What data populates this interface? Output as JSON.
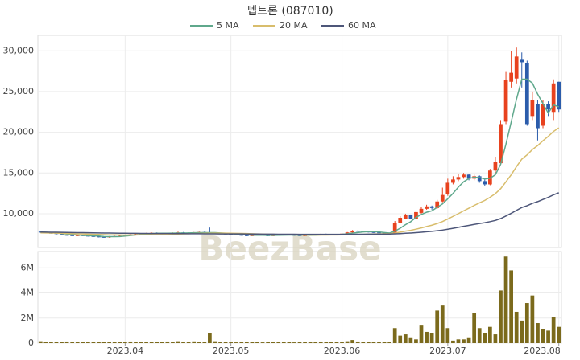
{
  "chart_data": [
    {
      "type": "candlestick",
      "title": "펩트론 (087010)",
      "watermark": "BeezBase",
      "up_color": "#e8421e",
      "down_color": "#2b5cab",
      "grid": true,
      "ylim": [
        5850,
        31900
      ],
      "yticks": [
        {
          "value": 10000,
          "label": "10,000"
        },
        {
          "value": 15000,
          "label": "15,000"
        },
        {
          "value": 20000,
          "label": "20,000"
        },
        {
          "value": 25000,
          "label": "25,000"
        },
        {
          "value": 30000,
          "label": "30,000"
        }
      ],
      "open": [
        7800,
        7700,
        7650,
        7600,
        7500,
        7400,
        7350,
        7300,
        7350,
        7300,
        7250,
        7200,
        7150,
        7100,
        7200,
        7250,
        7300,
        7400,
        7450,
        7500,
        7550,
        7600,
        7650,
        7600,
        7550,
        7600,
        7650,
        7700,
        7650,
        7600,
        7700,
        7750,
        7700,
        7650,
        7600,
        7550,
        7500,
        7450,
        7400,
        7350,
        7300,
        7350,
        7400,
        7350,
        7300,
        7350,
        7400,
        7450,
        7400,
        7350,
        7300,
        7350,
        7400,
        7450,
        7500,
        7450,
        7400,
        7450,
        7550,
        7700,
        7900,
        7850,
        7800,
        7750,
        7700,
        7650,
        7550,
        7550,
        8900,
        9400,
        9800,
        9400,
        10100,
        10600,
        10900,
        10700,
        11500,
        12400,
        13800,
        14200,
        14500,
        14800,
        14300,
        14600,
        14000,
        13600,
        15300,
        16200,
        21300,
        26200,
        26600,
        28900,
        28500,
        22000,
        23500,
        20800,
        23500,
        22500,
        26200
      ],
      "high": [
        7850,
        7750,
        7700,
        7650,
        7550,
        7450,
        7400,
        7400,
        7400,
        7350,
        7300,
        7250,
        7200,
        7250,
        7300,
        7350,
        7450,
        7500,
        7550,
        7600,
        7650,
        7700,
        7700,
        7650,
        7650,
        7700,
        7800,
        7750,
        7700,
        7750,
        7800,
        7800,
        8300,
        7700,
        7650,
        7600,
        7550,
        7500,
        7450,
        7400,
        7400,
        7450,
        7450,
        7400,
        7400,
        7450,
        7500,
        7500,
        7450,
        7400,
        7400,
        7450,
        7500,
        7550,
        7550,
        7500,
        7500,
        7600,
        7750,
        8000,
        7950,
        7900,
        7850,
        7800,
        7750,
        7700,
        7600,
        9100,
        9700,
        10000,
        9900,
        10300,
        10800,
        11100,
        11000,
        11700,
        13200,
        14300,
        14600,
        14900,
        15000,
        14900,
        14800,
        14700,
        14200,
        15500,
        17000,
        21500,
        27500,
        30000,
        30400,
        29800,
        28800,
        25000,
        24000,
        24000,
        23800,
        26500,
        26200
      ],
      "low": [
        7650,
        7600,
        7550,
        7450,
        7350,
        7300,
        7250,
        7250,
        7250,
        7200,
        7150,
        7100,
        7050,
        7050,
        7150,
        7200,
        7250,
        7350,
        7400,
        7450,
        7500,
        7550,
        7550,
        7500,
        7500,
        7550,
        7600,
        7600,
        7550,
        7550,
        7650,
        7650,
        7600,
        7550,
        7500,
        7450,
        7400,
        7350,
        7300,
        7250,
        7250,
        7300,
        7300,
        7250,
        7250,
        7300,
        7350,
        7350,
        7300,
        7250,
        7250,
        7300,
        7350,
        7400,
        7400,
        7350,
        7350,
        7400,
        7500,
        7650,
        7800,
        7750,
        7700,
        7650,
        7600,
        7500,
        7450,
        7500,
        8800,
        9300,
        9300,
        9300,
        10000,
        10500,
        10500,
        10600,
        11400,
        12200,
        13600,
        14000,
        14300,
        14100,
        14100,
        13800,
        13400,
        13500,
        15000,
        16000,
        21000,
        25500,
        26000,
        25500,
        20800,
        21500,
        19000,
        20500,
        22000,
        21500,
        22500
      ],
      "close": [
        7700,
        7650,
        7600,
        7500,
        7400,
        7350,
        7300,
        7350,
        7300,
        7250,
        7200,
        7150,
        7100,
        7200,
        7250,
        7300,
        7400,
        7450,
        7500,
        7550,
        7600,
        7650,
        7600,
        7550,
        7600,
        7650,
        7700,
        7650,
        7600,
        7700,
        7750,
        7700,
        7650,
        7600,
        7550,
        7500,
        7450,
        7400,
        7350,
        7300,
        7350,
        7400,
        7350,
        7300,
        7350,
        7400,
        7450,
        7400,
        7350,
        7300,
        7350,
        7400,
        7450,
        7500,
        7450,
        7400,
        7450,
        7550,
        7700,
        7900,
        7850,
        7800,
        7750,
        7700,
        7650,
        7550,
        7500,
        8900,
        9500,
        9800,
        9400,
        10200,
        10600,
        10900,
        10700,
        11500,
        12300,
        13800,
        14200,
        14500,
        14800,
        14300,
        14600,
        14000,
        13600,
        15300,
        16400,
        21000,
        26400,
        27300,
        29300,
        28600,
        21000,
        24000,
        20500,
        23500,
        22800,
        26000,
        22800
      ],
      "series": [
        {
          "name": "5 MA",
          "color": "#5fa88c",
          "values": [
            7750,
            7720,
            7680,
            7630,
            7570,
            7500,
            7430,
            7380,
            7340,
            7310,
            7280,
            7250,
            7200,
            7180,
            7180,
            7200,
            7250,
            7320,
            7390,
            7460,
            7520,
            7570,
            7590,
            7600,
            7600,
            7610,
            7620,
            7630,
            7640,
            7660,
            7680,
            7680,
            7680,
            7680,
            7640,
            7600,
            7550,
            7500,
            7450,
            7400,
            7370,
            7360,
            7360,
            7340,
            7340,
            7360,
            7370,
            7380,
            7390,
            7380,
            7370,
            7360,
            7370,
            7410,
            7430,
            7440,
            7450,
            7470,
            7530,
            7620,
            7690,
            7760,
            7800,
            7800,
            7760,
            7690,
            7630,
            7860,
            8220,
            8650,
            9020,
            9560,
            9900,
            10180,
            10360,
            10780,
            11200,
            11840,
            12500,
            13260,
            13920,
            14320,
            14480,
            14440,
            14260,
            14360,
            14780,
            16060,
            18540,
            21280,
            24080,
            26520,
            26520,
            26040,
            24680,
            23520,
            22360,
            23360,
            23120
          ]
        },
        {
          "name": "20 MA",
          "color": "#d8bd6c",
          "values": [
            7650,
            7640,
            7630,
            7610,
            7590,
            7570,
            7550,
            7530,
            7510,
            7490,
            7470,
            7450,
            7430,
            7410,
            7400,
            7390,
            7380,
            7380,
            7390,
            7400,
            7410,
            7420,
            7430,
            7440,
            7460,
            7480,
            7500,
            7520,
            7540,
            7560,
            7580,
            7590,
            7600,
            7610,
            7610,
            7610,
            7600,
            7590,
            7580,
            7560,
            7540,
            7520,
            7500,
            7480,
            7460,
            7440,
            7420,
            7410,
            7400,
            7390,
            7380,
            7380,
            7380,
            7380,
            7380,
            7390,
            7390,
            7400,
            7410,
            7430,
            7450,
            7470,
            7490,
            7510,
            7520,
            7540,
            7550,
            7625,
            7733,
            7858,
            7960,
            8100,
            8258,
            8428,
            8590,
            8795,
            9038,
            9350,
            9675,
            10005,
            10353,
            10678,
            11020,
            11335,
            11633,
            12020,
            12465,
            13070,
            13915,
            14790,
            15785,
            16705,
            17225,
            17880,
            18370,
            18970,
            19495,
            20105,
            20535
          ]
        },
        {
          "name": "60 MA",
          "color": "#4d5679",
          "values": [
            7750,
            7740,
            7730,
            7720,
            7710,
            7700,
            7690,
            7680,
            7670,
            7660,
            7650,
            7640,
            7630,
            7620,
            7610,
            7600,
            7600,
            7590,
            7590,
            7580,
            7580,
            7570,
            7570,
            7560,
            7560,
            7550,
            7550,
            7550,
            7540,
            7540,
            7540,
            7530,
            7530,
            7530,
            7520,
            7520,
            7520,
            7510,
            7510,
            7500,
            7500,
            7500,
            7490,
            7490,
            7490,
            7480,
            7480,
            7480,
            7480,
            7470,
            7470,
            7470,
            7470,
            7470,
            7470,
            7470,
            7470,
            7470,
            7470,
            7480,
            7480,
            7480,
            7490,
            7490,
            7490,
            7490,
            7500,
            7524,
            7558,
            7597,
            7630,
            7676,
            7729,
            7787,
            7841,
            7909,
            7990,
            8096,
            8209,
            8327,
            8450,
            8564,
            8683,
            8792,
            8895,
            9026,
            9175,
            9401,
            9717,
            10048,
            10412,
            10765,
            10991,
            11267,
            11485,
            11752,
            12008,
            12317,
            12573
          ]
        }
      ]
    },
    {
      "type": "bar",
      "color": "#7b6a1c",
      "grid": true,
      "ylim": [
        0,
        7300000
      ],
      "yticks": [
        {
          "value": 0,
          "label": "0"
        },
        {
          "value": 2000000,
          "label": "2M"
        },
        {
          "value": 4000000,
          "label": "4M"
        },
        {
          "value": 6000000,
          "label": "6M"
        }
      ],
      "categories": [
        null,
        null,
        null,
        null,
        null,
        null,
        null,
        null,
        null,
        null,
        null,
        null,
        null,
        null,
        null,
        null,
        "2023.04",
        null,
        null,
        null,
        null,
        null,
        null,
        null,
        null,
        null,
        null,
        null,
        null,
        null,
        null,
        null,
        null,
        null,
        null,
        null,
        "2023.05",
        null,
        null,
        null,
        null,
        null,
        null,
        null,
        null,
        null,
        null,
        null,
        null,
        null,
        null,
        null,
        null,
        null,
        null,
        null,
        null,
        "2023.06",
        null,
        null,
        null,
        null,
        null,
        null,
        null,
        null,
        null,
        null,
        null,
        null,
        null,
        null,
        null,
        null,
        null,
        null,
        null,
        "2023.07",
        null,
        null,
        null,
        null,
        null,
        null,
        null,
        null,
        null,
        null,
        null,
        null,
        null,
        null,
        null,
        null,
        null,
        null,
        null,
        null,
        "2023.08"
      ],
      "values": [
        150000,
        120000,
        100000,
        90000,
        110000,
        130000,
        100000,
        80000,
        90000,
        70000,
        80000,
        100000,
        90000,
        120000,
        110000,
        90000,
        100000,
        130000,
        120000,
        110000,
        100000,
        90000,
        80000,
        110000,
        130000,
        120000,
        150000,
        100000,
        90000,
        140000,
        120000,
        100000,
        800000,
        150000,
        90000,
        80000,
        70000,
        60000,
        80000,
        70000,
        90000,
        80000,
        60000,
        70000,
        80000,
        90000,
        100000,
        70000,
        60000,
        80000,
        70000,
        90000,
        110000,
        100000,
        80000,
        70000,
        90000,
        120000,
        150000,
        250000,
        130000,
        100000,
        90000,
        80000,
        70000,
        90000,
        80000,
        1200000,
        600000,
        700000,
        400000,
        300000,
        1400000,
        900000,
        800000,
        2600000,
        3000000,
        1200000,
        200000,
        300000,
        300000,
        400000,
        2400000,
        1200000,
        800000,
        1300000,
        700000,
        4200000,
        6900000,
        5800000,
        2500000,
        1800000,
        3200000,
        3800000,
        1600000,
        1100000,
        1000000,
        2100000,
        1300000
      ]
    }
  ]
}
